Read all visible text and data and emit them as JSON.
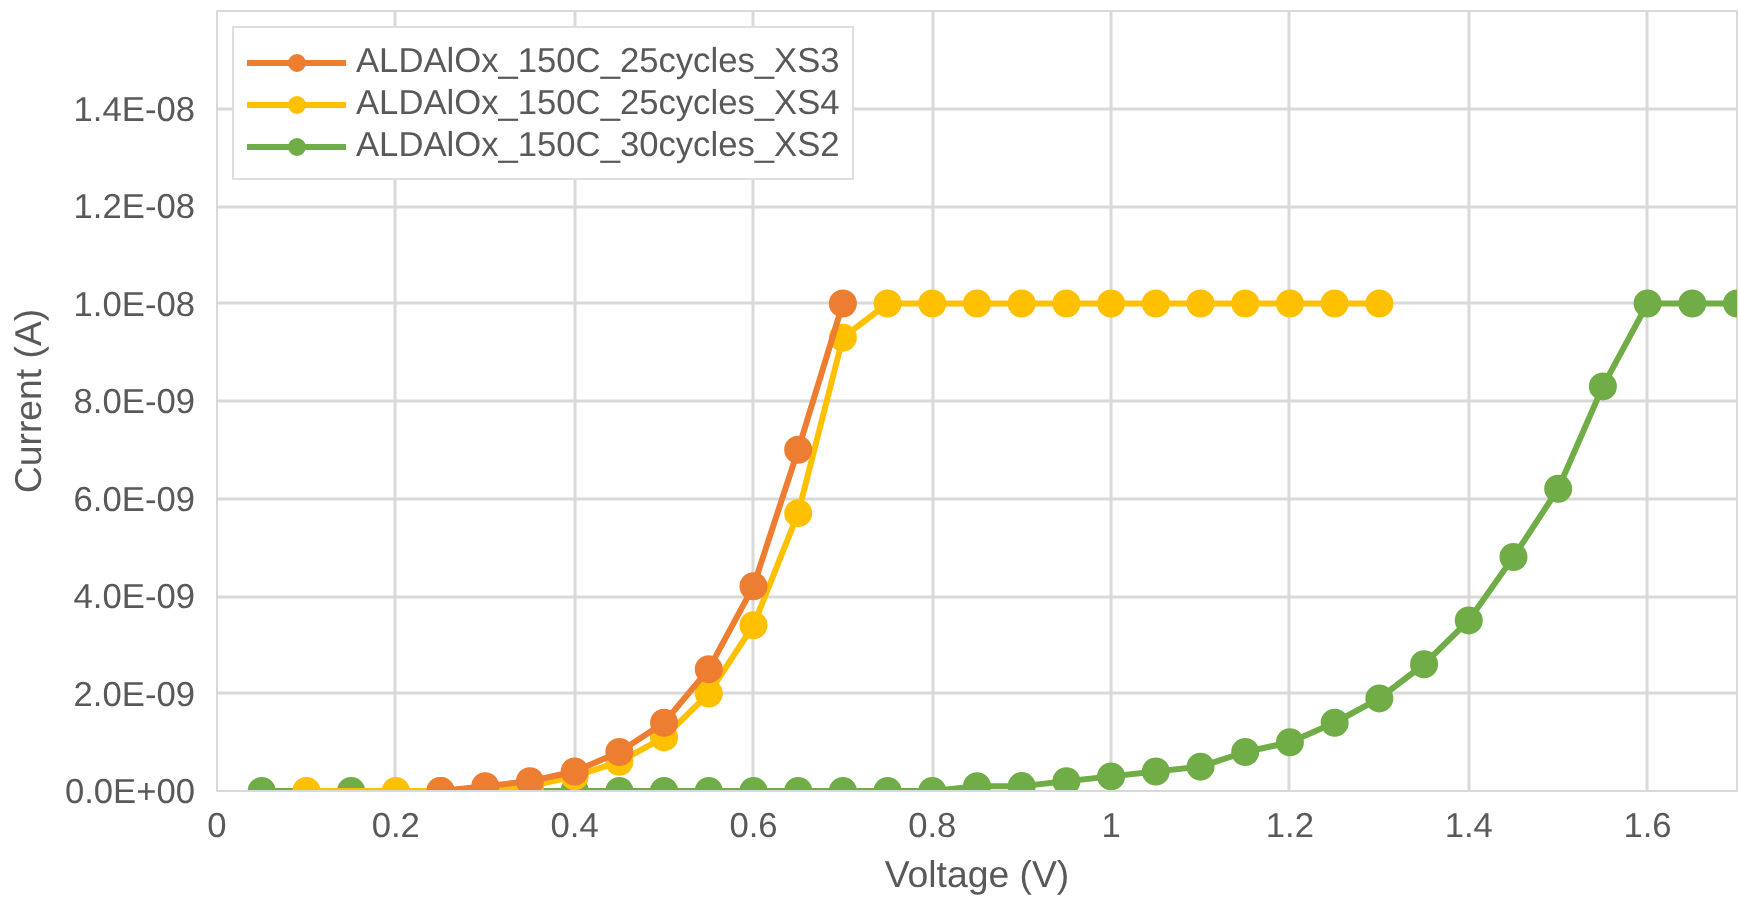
{
  "chart_data": {
    "type": "line",
    "xlabel": "Voltage (V)",
    "ylabel": "Current (A)",
    "xlim": [
      0,
      1.7
    ],
    "ylim": [
      0,
      1.6e-08
    ],
    "xticks": [
      0,
      {
        "value": 0.2,
        "label": "0.2"
      },
      {
        "value": 0.4,
        "label": "0.4"
      },
      {
        "value": 0.6,
        "label": "0.6"
      },
      {
        "value": 0.8,
        "label": "0.8"
      },
      1,
      {
        "value": 1.2,
        "label": "1.2"
      },
      {
        "value": 1.4,
        "label": "1.4"
      },
      {
        "value": 1.6,
        "label": "1.6"
      }
    ],
    "yticks": [
      {
        "value": 0,
        "label": "0.0E+00"
      },
      {
        "value": 2e-09,
        "label": "2.0E-09"
      },
      {
        "value": 4e-09,
        "label": "4.0E-09"
      },
      {
        "value": 6e-09,
        "label": "6.0E-09"
      },
      {
        "value": 8e-09,
        "label": "8.0E-09"
      },
      {
        "value": 1e-08,
        "label": "1.0E-08"
      },
      {
        "value": 1.2e-08,
        "label": "1.2E-08"
      },
      {
        "value": 1.4e-08,
        "label": "1.4E-08"
      }
    ],
    "grid": true,
    "legend": "top left",
    "marker": "circle",
    "line_style": "solid",
    "series": [
      {
        "name": "ALDAlOx_150C_25cycles_XS3",
        "color": "#ed7d31",
        "x": [
          0.25,
          0.3,
          0.35,
          0.4,
          0.45,
          0.5,
          0.55,
          0.6,
          0.65,
          0.7
        ],
        "values": [
          0,
          1e-10,
          2e-10,
          4e-10,
          8e-10,
          1.4e-09,
          2.5e-09,
          4.2e-09,
          7e-09,
          1e-08
        ]
      },
      {
        "name": "ALDAlOx_150C_25cycles_XS4",
        "color": "#ffc000",
        "x": [
          0.1,
          0.2,
          0.25,
          0.3,
          0.35,
          0.4,
          0.45,
          0.5,
          0.55,
          0.6,
          0.65,
          0.7,
          0.75,
          0.8,
          0.85,
          0.9,
          0.95,
          1.0,
          1.05,
          1.1,
          1.15,
          1.2,
          1.25,
          1.3
        ],
        "values": [
          0,
          0,
          0,
          0,
          1e-10,
          3e-10,
          6e-10,
          1.1e-09,
          2e-09,
          3.4e-09,
          5.7e-09,
          9.3e-09,
          1e-08,
          1e-08,
          1e-08,
          1e-08,
          1e-08,
          1e-08,
          1e-08,
          1e-08,
          1e-08,
          1e-08,
          1e-08,
          1e-08
        ]
      },
      {
        "name": "ALDAlOx_150C_30cycles_XS2",
        "color": "#70ad47",
        "x": [
          0.05,
          0.15,
          0.25,
          0.3,
          0.35,
          0.4,
          0.45,
          0.5,
          0.55,
          0.6,
          0.65,
          0.7,
          0.75,
          0.8,
          0.85,
          0.9,
          0.95,
          1.0,
          1.05,
          1.1,
          1.15,
          1.2,
          1.25,
          1.3,
          1.35,
          1.4,
          1.45,
          1.5,
          1.55,
          1.6,
          1.65,
          1.7
        ],
        "values": [
          0,
          0,
          0,
          0,
          0,
          0,
          0,
          0,
          0,
          0,
          0,
          0,
          0,
          0,
          1e-10,
          1e-10,
          2e-10,
          3e-10,
          4e-10,
          5e-10,
          8e-10,
          1e-09,
          1.4e-09,
          1.9e-09,
          2.6e-09,
          3.5e-09,
          4.8e-09,
          6.2e-09,
          8.3e-09,
          1e-08,
          1e-08,
          1e-08
        ]
      }
    ]
  }
}
